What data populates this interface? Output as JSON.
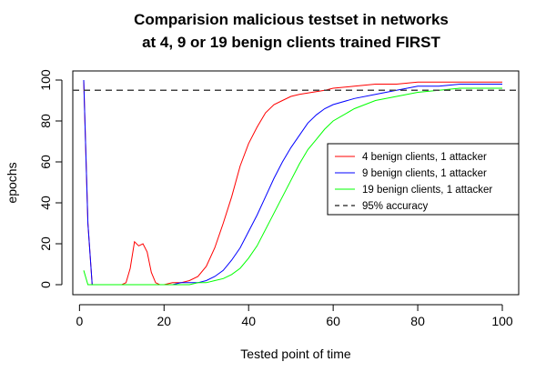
{
  "chart_data": {
    "type": "line",
    "title_lines": [
      "Comparision malicious testset in networks",
      "at 4, 9 or 19 benign clients trained FIRST"
    ],
    "xlabel": "Tested point of time",
    "ylabel": "epochs",
    "xlim": [
      1,
      100
    ],
    "ylim": [
      0,
      100
    ],
    "x_ticks": [
      0,
      20,
      40,
      60,
      80,
      100
    ],
    "y_ticks": [
      0,
      20,
      40,
      60,
      80,
      100
    ],
    "grid": false,
    "legend_position": "right",
    "series": [
      {
        "name": "4 benign clients, 1 attacker",
        "color": "#ff0000",
        "x": [
          1,
          2,
          3,
          5,
          8,
          10,
          11,
          12,
          13,
          14,
          15,
          16,
          17,
          18,
          19,
          20,
          22,
          24,
          26,
          28,
          30,
          32,
          34,
          36,
          38,
          40,
          42,
          44,
          46,
          48,
          50,
          52,
          55,
          58,
          60,
          65,
          70,
          75,
          80,
          85,
          90,
          95,
          100
        ],
        "y": [
          100,
          30,
          0,
          0,
          0,
          0,
          1,
          8,
          21,
          19,
          20,
          16,
          6,
          1,
          0,
          0,
          1,
          1,
          2,
          4,
          9,
          18,
          30,
          43,
          58,
          69,
          77,
          84,
          88,
          90,
          92,
          93,
          94,
          95,
          96,
          97,
          98,
          98,
          99,
          99,
          99,
          99,
          99
        ]
      },
      {
        "name": "9 benign clients, 1 attacker",
        "color": "#0000ff",
        "x": [
          1,
          2,
          3,
          5,
          10,
          15,
          20,
          22,
          24,
          26,
          28,
          30,
          32,
          34,
          36,
          38,
          40,
          42,
          44,
          46,
          48,
          50,
          52,
          54,
          56,
          58,
          60,
          65,
          70,
          75,
          80,
          85,
          90,
          95,
          100
        ],
        "y": [
          100,
          30,
          0,
          0,
          0,
          0,
          0,
          0,
          1,
          1,
          1,
          2,
          4,
          7,
          12,
          18,
          26,
          34,
          43,
          52,
          60,
          67,
          73,
          79,
          83,
          86,
          88,
          91,
          93,
          95,
          97,
          97,
          98,
          98,
          98
        ]
      },
      {
        "name": "19 benign clients, 1 attacker",
        "color": "#00ff00",
        "x": [
          1,
          2,
          3,
          5,
          10,
          15,
          20,
          24,
          26,
          28,
          30,
          32,
          34,
          36,
          38,
          40,
          42,
          44,
          46,
          48,
          50,
          52,
          54,
          56,
          58,
          60,
          65,
          70,
          75,
          80,
          85,
          90,
          95,
          100
        ],
        "y": [
          7,
          0,
          0,
          0,
          0,
          0,
          0,
          0,
          0,
          1,
          1,
          2,
          3,
          5,
          8,
          13,
          19,
          27,
          35,
          43,
          51,
          59,
          66,
          71,
          76,
          80,
          86,
          90,
          92,
          94,
          95,
          96,
          96,
          96
        ]
      },
      {
        "name": "95% accuracy",
        "color": "#444444",
        "line_style": "dashed",
        "reference_y": 95
      }
    ]
  }
}
